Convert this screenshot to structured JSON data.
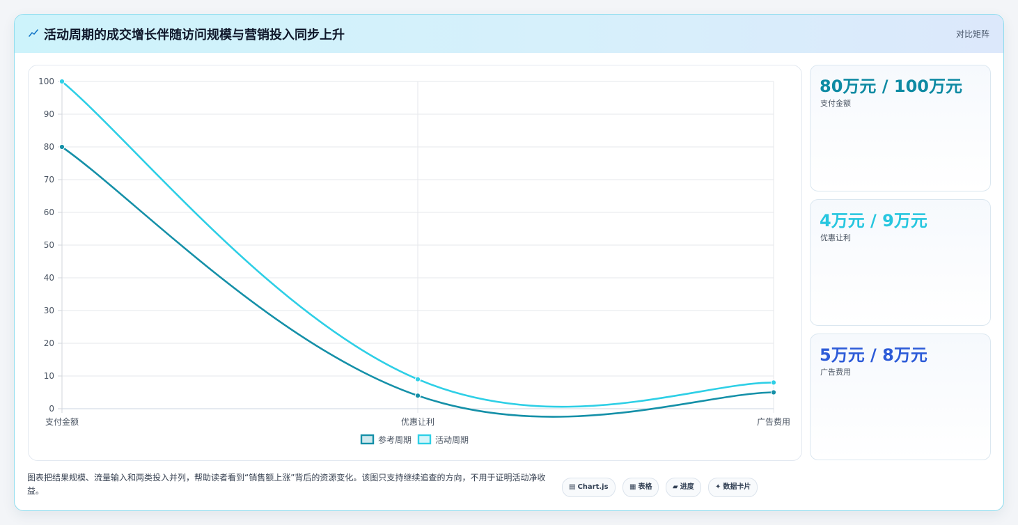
{
  "header": {
    "icon": "trend-icon",
    "title": "活动周期的成交增长伴随访问规模与营销投入同步上升",
    "link_label": "对比矩阵"
  },
  "chart_data": {
    "type": "line",
    "categories": [
      "支付金额",
      "优惠让利",
      "广告费用"
    ],
    "series": [
      {
        "name": "参考周期",
        "values": [
          80,
          4,
          5
        ],
        "color": "#1590a8"
      },
      {
        "name": "活动周期",
        "values": [
          100,
          9,
          8
        ],
        "color": "#2ecfe6"
      }
    ],
    "ylim": [
      0,
      100
    ],
    "yticks": [
      0,
      10,
      20,
      30,
      40,
      50,
      60,
      70,
      80,
      90,
      100
    ],
    "grid": true,
    "legend_position": "bottom",
    "smooth": true
  },
  "metrics": [
    {
      "value": "80万元 / 100万元",
      "label": "支付金额",
      "color": "#0e8aa3"
    },
    {
      "value": "4万元 / 9万元",
      "label": "优惠让利",
      "color": "#27c6df"
    },
    {
      "value": "5万元 / 8万元",
      "label": "广告费用",
      "color": "#2d5bd8"
    }
  ],
  "footer": {
    "description": "图表把结果规模、流量输入和两类投入并列，帮助读者看到“销售额上涨”背后的资源变化。该图只支持继续追查的方向，不用于证明活动净收益。",
    "pills": [
      {
        "icon": "chart-icon",
        "glyph": "▤",
        "label": "Chart.js"
      },
      {
        "icon": "table-icon",
        "glyph": "▦",
        "label": "表格"
      },
      {
        "icon": "progress-icon",
        "glyph": "▰",
        "label": "进度"
      },
      {
        "icon": "sparkle-icon",
        "glyph": "✦",
        "label": "数据卡片"
      }
    ]
  }
}
